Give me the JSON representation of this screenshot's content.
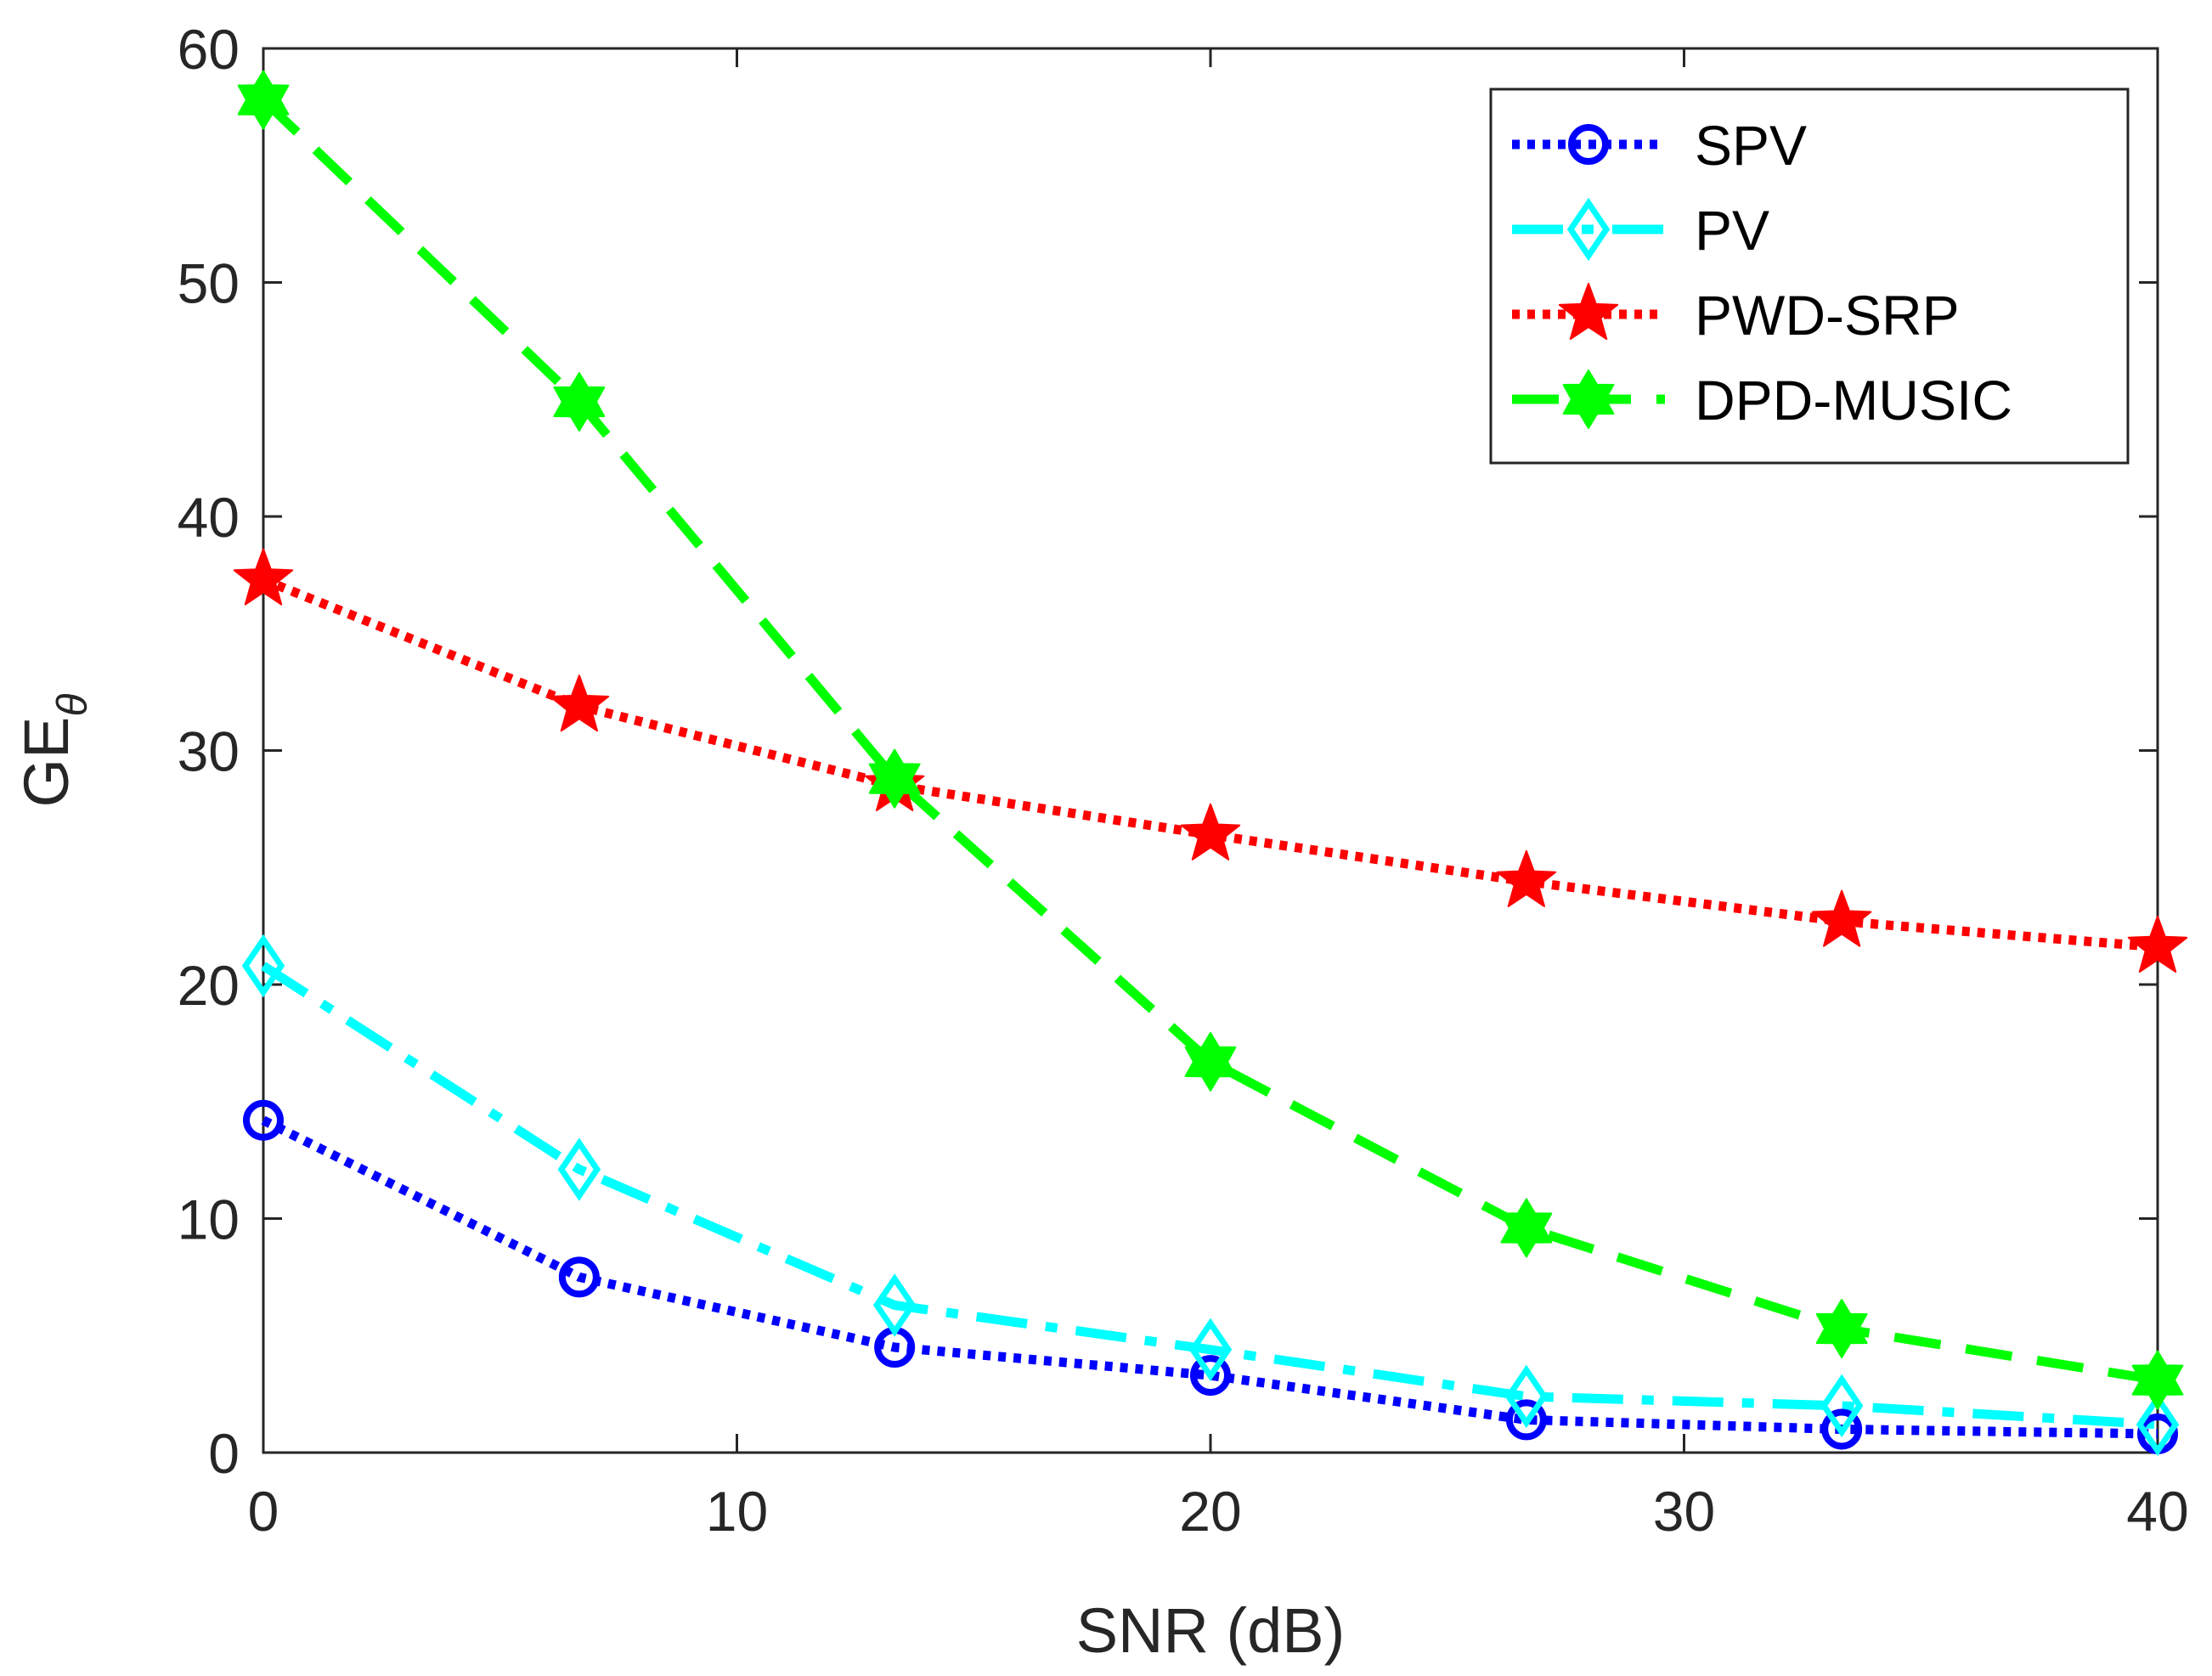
{
  "chart_data": {
    "type": "line",
    "title": "",
    "xlabel": "SNR (dB)",
    "ylabel": "GE",
    "ylabel_subscript": "θ",
    "xlim": [
      0,
      40
    ],
    "ylim": [
      0,
      60
    ],
    "xticks": [
      0,
      10,
      20,
      30,
      40
    ],
    "yticks": [
      0,
      10,
      20,
      30,
      40,
      50,
      60
    ],
    "xtick_labels": [
      "0",
      "10",
      "20",
      "30",
      "40"
    ],
    "ytick_labels": [
      "0",
      "10",
      "20",
      "30",
      "40",
      "50",
      "60"
    ],
    "grid": false,
    "legend_position": "top-right",
    "x": [
      0,
      6.67,
      13.33,
      20,
      26.67,
      33.33,
      40
    ],
    "series": [
      {
        "name": "SPV",
        "values": [
          14.2,
          7.5,
          4.5,
          3.3,
          1.4,
          1.0,
          0.8
        ],
        "color": "#0000ff",
        "line": "dotted",
        "marker": "circle"
      },
      {
        "name": "PV",
        "values": [
          20.8,
          12.1,
          6.3,
          4.4,
          2.4,
          2.0,
          1.2
        ],
        "color": "#00ffff",
        "line": "dashdot",
        "marker": "diamond"
      },
      {
        "name": "PWD-SRP",
        "values": [
          37.3,
          31.9,
          28.5,
          26.4,
          24.4,
          22.7,
          21.6
        ],
        "color": "#ff0000",
        "line": "dotted",
        "marker": "pentagram"
      },
      {
        "name": "DPD-MUSIC",
        "values": [
          57.8,
          44.9,
          28.8,
          16.7,
          9.6,
          5.3,
          3.1
        ],
        "color": "#00ff00",
        "line": "dashed",
        "marker": "hexagram"
      }
    ]
  }
}
